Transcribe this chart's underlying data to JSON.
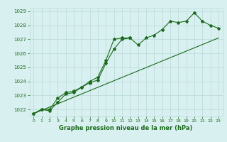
{
  "title": "Graphe pression niveau de la mer (hPa)",
  "xlabel_hours": [
    0,
    1,
    2,
    3,
    4,
    5,
    6,
    7,
    8,
    9,
    10,
    11,
    12,
    13,
    14,
    15,
    16,
    17,
    18,
    19,
    20,
    21,
    22,
    23
  ],
  "line1": [
    1021.7,
    1022.0,
    1021.9,
    1022.5,
    1023.1,
    1023.2,
    1023.6,
    1023.9,
    1024.1,
    1025.3,
    1026.3,
    1027.0,
    1027.1,
    1026.6,
    1027.1,
    1027.3,
    1027.7,
    1028.3,
    1028.2,
    1028.3,
    1028.9,
    1028.3,
    1028.0,
    1027.8
  ],
  "line2": [
    1021.7,
    1022.0,
    1022.0,
    1022.8,
    1023.2,
    1023.3,
    1023.6,
    1024.0,
    1024.3,
    1025.5,
    1027.0,
    1027.1,
    1027.1,
    null,
    null,
    null,
    null,
    null,
    null,
    null,
    null,
    null,
    null,
    null
  ],
  "line3": [
    1021.7,
    null,
    null,
    null,
    null,
    null,
    null,
    null,
    null,
    null,
    null,
    null,
    null,
    null,
    null,
    null,
    null,
    null,
    null,
    null,
    null,
    null,
    null,
    1027.1
  ],
  "ylim": [
    1021.5,
    1029.2
  ],
  "xlim": [
    -0.5,
    23.5
  ],
  "yticks": [
    1022,
    1023,
    1024,
    1025,
    1026,
    1027,
    1028,
    1029
  ],
  "xticks": [
    0,
    1,
    2,
    3,
    4,
    5,
    6,
    7,
    8,
    9,
    10,
    11,
    12,
    13,
    14,
    15,
    16,
    17,
    18,
    19,
    20,
    21,
    22,
    23
  ],
  "line_color": "#1a6b1a",
  "bg_color": "#d9f0f0",
  "grid_color": "#b8d8d8",
  "title_color": "#1a6b1a",
  "tick_color": "#1a6b1a",
  "marker": "*",
  "markersize": 3,
  "linewidth": 0.8
}
